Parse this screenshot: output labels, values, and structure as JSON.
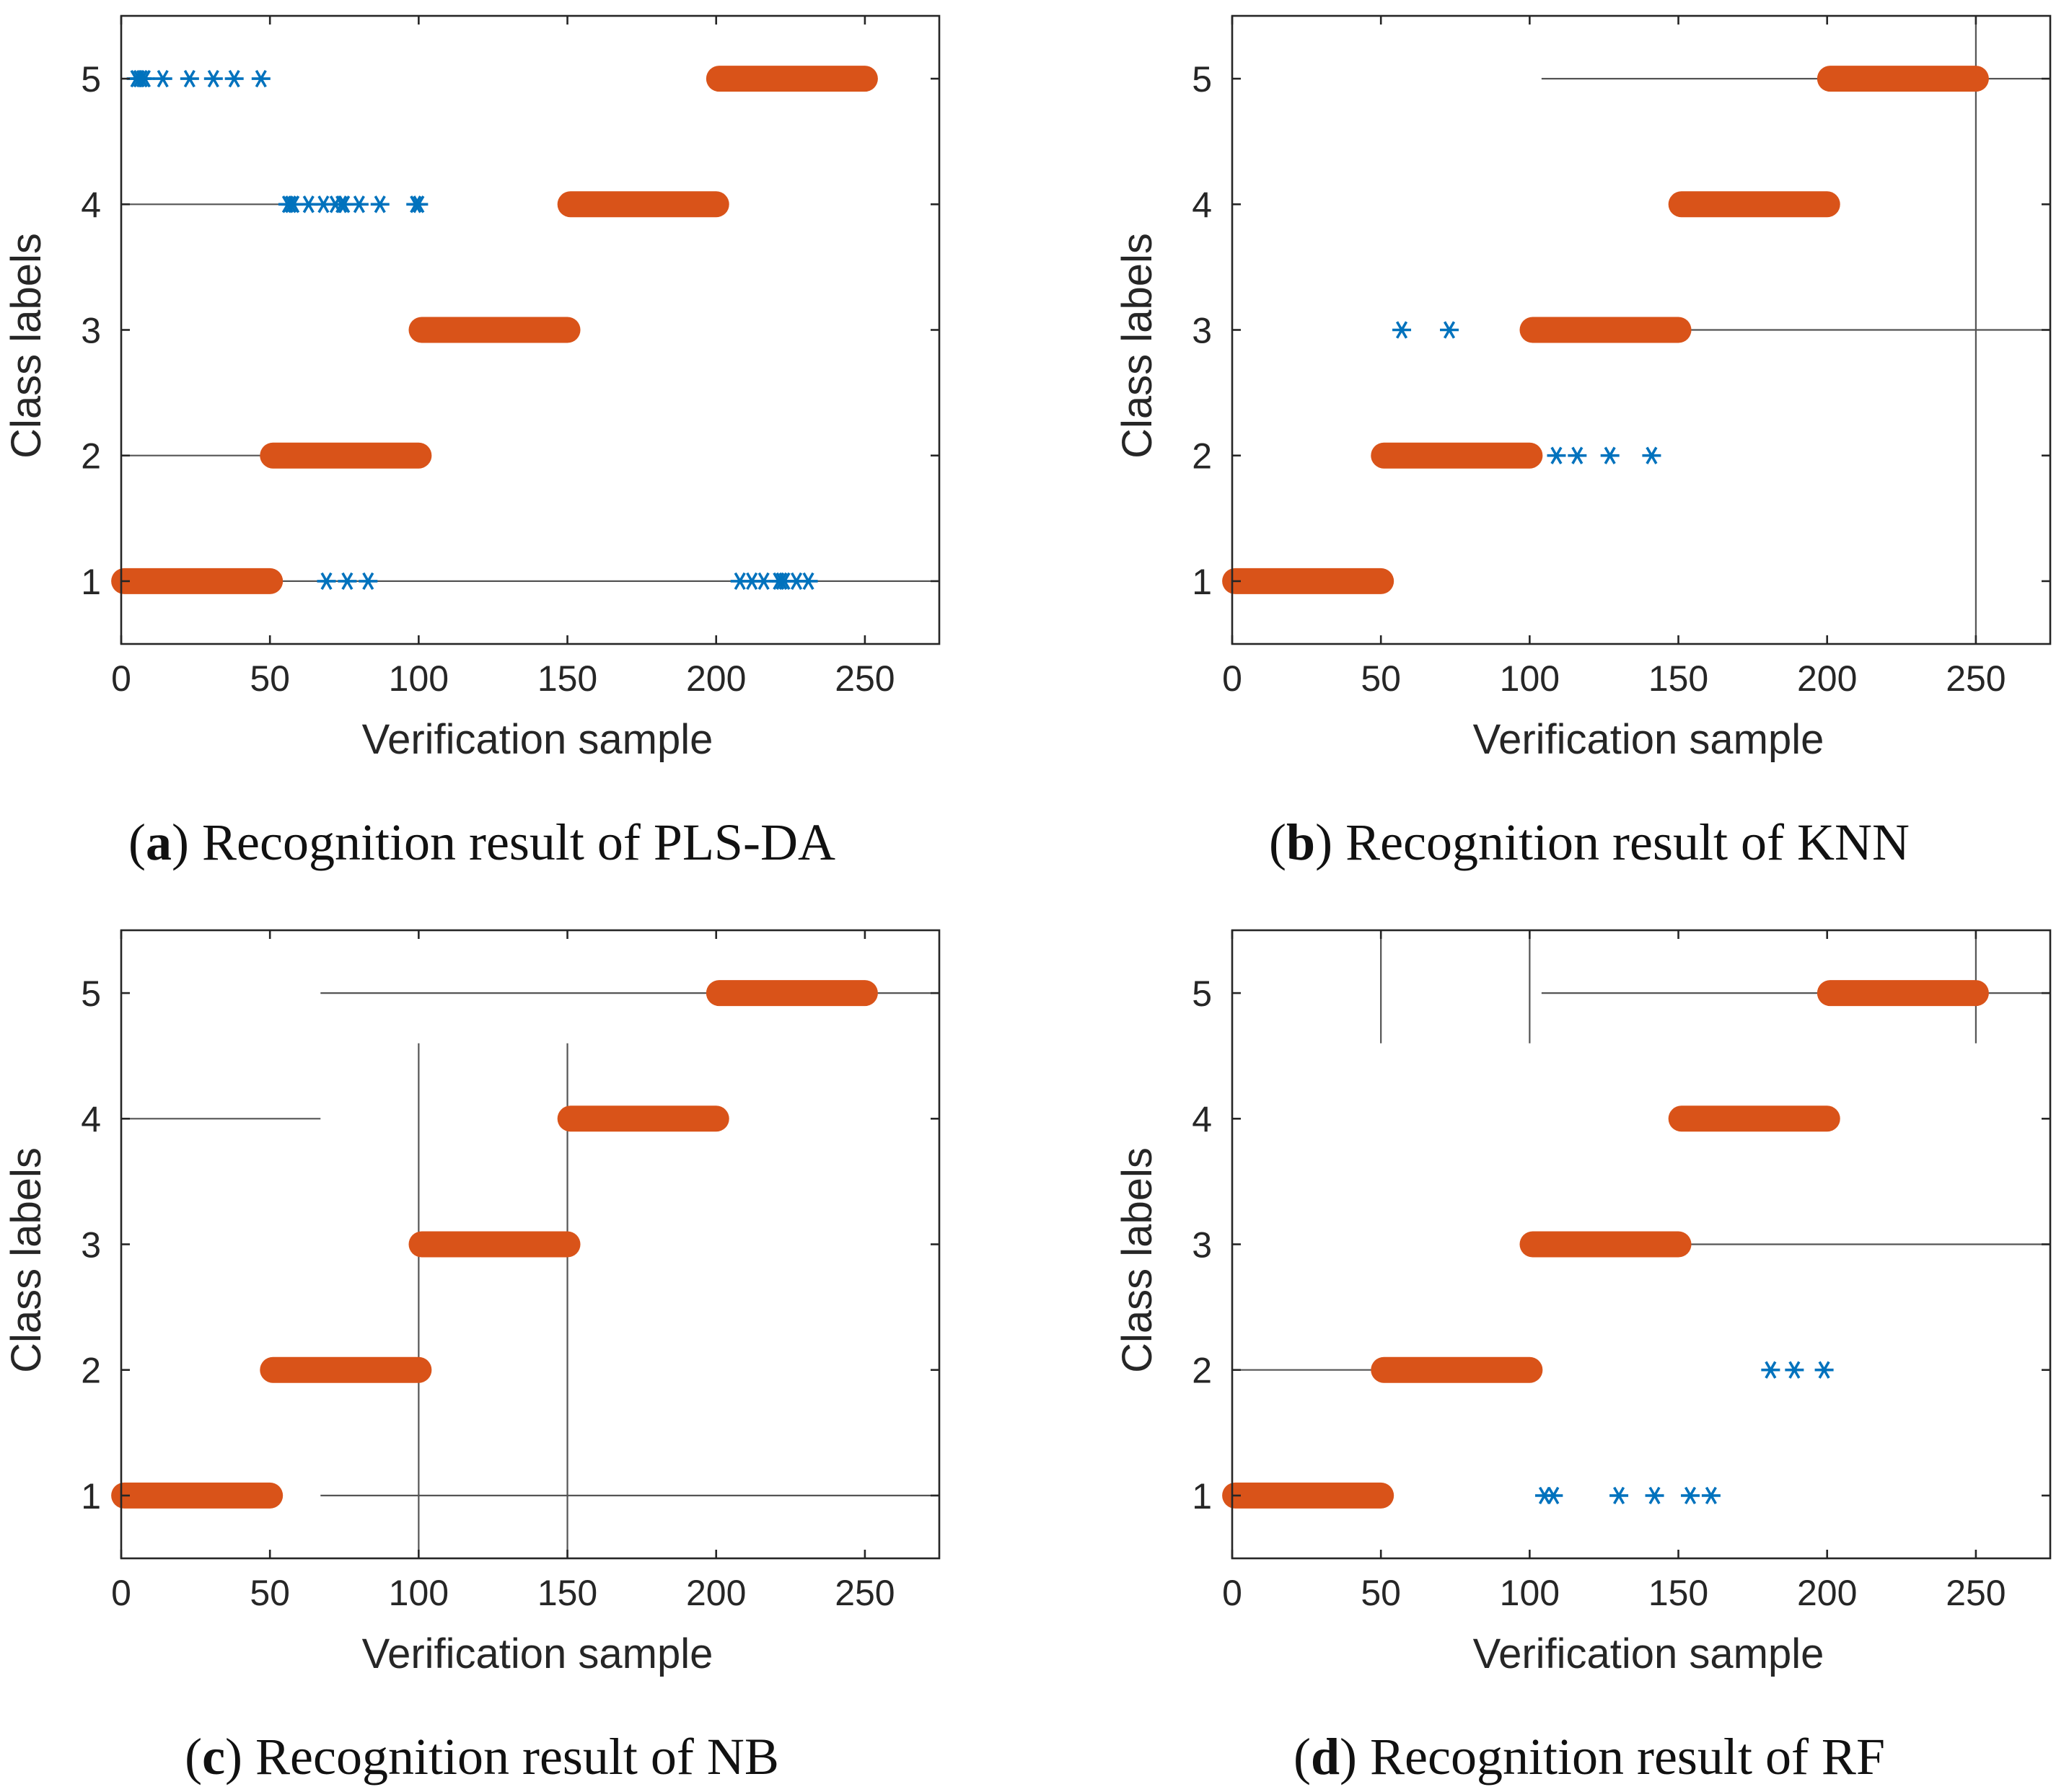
{
  "colors": {
    "true_class": "#D95319",
    "predicted": "#0072BD",
    "axes": "#262626",
    "guide": "#555555"
  },
  "chart_data": [
    {
      "type": "scatter",
      "caption": {
        "letter": "a",
        "text": "Recognition result of PLS-DA"
      },
      "xlabel": "Verification sample",
      "ylabel": "Class labels",
      "xlim": [
        0,
        275
      ],
      "ylim": [
        0.5,
        5.5
      ],
      "xticks": [
        0,
        50,
        100,
        150,
        200,
        250
      ],
      "yticks": [
        1,
        2,
        3,
        4,
        5
      ],
      "true_classes": [
        {
          "class": 1,
          "from": 1,
          "to": 50
        },
        {
          "class": 2,
          "from": 51,
          "to": 100
        },
        {
          "class": 3,
          "from": 101,
          "to": 150
        },
        {
          "class": 4,
          "from": 151,
          "to": 200
        },
        {
          "class": 5,
          "from": 201,
          "to": 250
        }
      ],
      "misclassified": [
        {
          "x": 5,
          "y": 5
        },
        {
          "x": 6,
          "y": 5
        },
        {
          "x": 7,
          "y": 5
        },
        {
          "x": 8,
          "y": 5
        },
        {
          "x": 14,
          "y": 5
        },
        {
          "x": 23,
          "y": 5
        },
        {
          "x": 31,
          "y": 5
        },
        {
          "x": 38,
          "y": 5
        },
        {
          "x": 47,
          "y": 5
        },
        {
          "x": 56,
          "y": 4
        },
        {
          "x": 57,
          "y": 4
        },
        {
          "x": 58,
          "y": 4
        },
        {
          "x": 63,
          "y": 4
        },
        {
          "x": 68,
          "y": 4
        },
        {
          "x": 72,
          "y": 4
        },
        {
          "x": 74,
          "y": 4
        },
        {
          "x": 75,
          "y": 4
        },
        {
          "x": 80,
          "y": 4
        },
        {
          "x": 87,
          "y": 4
        },
        {
          "x": 99,
          "y": 4
        },
        {
          "x": 100,
          "y": 4
        },
        {
          "x": 69,
          "y": 1
        },
        {
          "x": 76,
          "y": 1
        },
        {
          "x": 83,
          "y": 1
        },
        {
          "x": 208,
          "y": 1
        },
        {
          "x": 212,
          "y": 1
        },
        {
          "x": 216,
          "y": 1
        },
        {
          "x": 221,
          "y": 1
        },
        {
          "x": 222,
          "y": 1
        },
        {
          "x": 223,
          "y": 1
        },
        {
          "x": 227,
          "y": 1
        },
        {
          "x": 231,
          "y": 1
        }
      ],
      "guides": [
        {
          "orientation": "h",
          "at": 4,
          "from": 0,
          "to": 55
        },
        {
          "orientation": "h",
          "at": 2,
          "from": 0,
          "to": 48
        },
        {
          "orientation": "h",
          "at": 1,
          "from": 52,
          "to": 275
        }
      ]
    },
    {
      "type": "scatter",
      "caption": {
        "letter": "b",
        "text": "Recognition result of KNN"
      },
      "xlabel": "Verification sample",
      "ylabel": "Class labels",
      "xlim": [
        0,
        275
      ],
      "ylim": [
        0.5,
        5.5
      ],
      "xticks": [
        0,
        50,
        100,
        150,
        200,
        250
      ],
      "yticks": [
        1,
        2,
        3,
        4,
        5
      ],
      "true_classes": [
        {
          "class": 1,
          "from": 1,
          "to": 50
        },
        {
          "class": 2,
          "from": 51,
          "to": 100
        },
        {
          "class": 3,
          "from": 101,
          "to": 150
        },
        {
          "class": 4,
          "from": 151,
          "to": 200
        },
        {
          "class": 5,
          "from": 201,
          "to": 250
        }
      ],
      "misclassified": [
        {
          "x": 57,
          "y": 3
        },
        {
          "x": 73,
          "y": 3
        },
        {
          "x": 109,
          "y": 2
        },
        {
          "x": 116,
          "y": 2
        },
        {
          "x": 127,
          "y": 2
        },
        {
          "x": 141,
          "y": 2
        }
      ],
      "guides": [
        {
          "orientation": "h",
          "at": 5,
          "from": 104,
          "to": 275
        },
        {
          "orientation": "h",
          "at": 3,
          "from": 150,
          "to": 275
        },
        {
          "orientation": "v",
          "at": 250,
          "from": 0.5,
          "to": 5.5
        }
      ]
    },
    {
      "type": "scatter",
      "caption": {
        "letter": "c",
        "text": "Recognition result of NB"
      },
      "xlabel": "Verification sample",
      "ylabel": "Class labels",
      "xlim": [
        0,
        275
      ],
      "ylim": [
        0.5,
        5.5
      ],
      "xticks": [
        0,
        50,
        100,
        150,
        200,
        250
      ],
      "yticks": [
        1,
        2,
        3,
        4,
        5
      ],
      "true_classes": [
        {
          "class": 1,
          "from": 1,
          "to": 50
        },
        {
          "class": 2,
          "from": 51,
          "to": 100
        },
        {
          "class": 3,
          "from": 101,
          "to": 150
        },
        {
          "class": 4,
          "from": 151,
          "to": 200
        },
        {
          "class": 5,
          "from": 201,
          "to": 250
        }
      ],
      "misclassified": [],
      "guides": [
        {
          "orientation": "h",
          "at": 5,
          "from": 67,
          "to": 275
        },
        {
          "orientation": "h",
          "at": 4,
          "from": 0,
          "to": 67
        },
        {
          "orientation": "h",
          "at": 1,
          "from": 67,
          "to": 275
        },
        {
          "orientation": "v",
          "at": 100,
          "from": 0.5,
          "to": 4.6
        },
        {
          "orientation": "v",
          "at": 150,
          "from": 0.5,
          "to": 4.6
        }
      ]
    },
    {
      "type": "scatter",
      "caption": {
        "letter": "d",
        "text": "Recognition result of RF"
      },
      "xlabel": "Verification sample",
      "ylabel": "Class labels",
      "xlim": [
        0,
        275
      ],
      "ylim": [
        0.5,
        5.5
      ],
      "xticks": [
        0,
        50,
        100,
        150,
        200,
        250
      ],
      "yticks": [
        1,
        2,
        3,
        4,
        5
      ],
      "true_classes": [
        {
          "class": 1,
          "from": 1,
          "to": 50
        },
        {
          "class": 2,
          "from": 51,
          "to": 100
        },
        {
          "class": 3,
          "from": 101,
          "to": 150
        },
        {
          "class": 4,
          "from": 151,
          "to": 200
        },
        {
          "class": 5,
          "from": 201,
          "to": 250
        }
      ],
      "misclassified": [
        {
          "x": 181,
          "y": 2
        },
        {
          "x": 189,
          "y": 2
        },
        {
          "x": 199,
          "y": 2
        },
        {
          "x": 105,
          "y": 1
        },
        {
          "x": 108,
          "y": 1
        },
        {
          "x": 130,
          "y": 1
        },
        {
          "x": 142,
          "y": 1
        },
        {
          "x": 154,
          "y": 1
        },
        {
          "x": 161,
          "y": 1
        }
      ],
      "guides": [
        {
          "orientation": "h",
          "at": 5,
          "from": 104,
          "to": 275
        },
        {
          "orientation": "h",
          "at": 3,
          "from": 150,
          "to": 275
        },
        {
          "orientation": "h",
          "at": 2,
          "from": 0,
          "to": 48
        },
        {
          "orientation": "v",
          "at": 50,
          "from": 4.6,
          "to": 5.5
        },
        {
          "orientation": "v",
          "at": 100,
          "from": 4.6,
          "to": 5.5
        },
        {
          "orientation": "v",
          "at": 250,
          "from": 4.6,
          "to": 5.5
        }
      ]
    }
  ]
}
